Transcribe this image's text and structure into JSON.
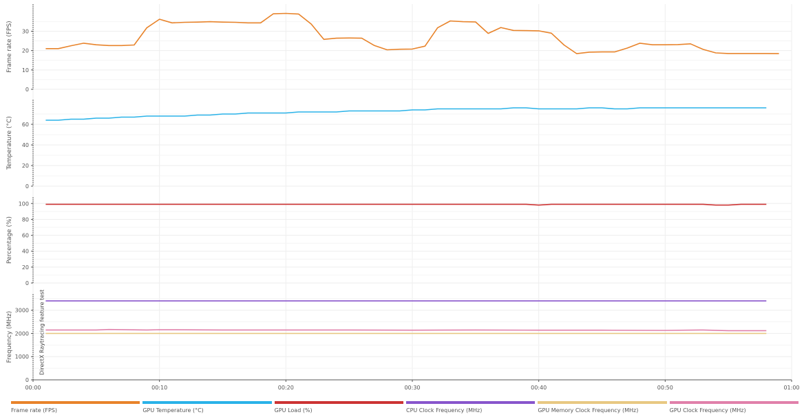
{
  "chart_data": {
    "type": "line",
    "x_axis": {
      "ticks": [
        "00:00",
        "00:10",
        "00:20",
        "00:30",
        "00:40",
        "00:50",
        "01:00"
      ],
      "range_seconds": [
        0,
        60
      ]
    },
    "marker": {
      "x": 1,
      "label": "DirectX Raytracing feature test"
    },
    "panels": [
      {
        "ylabel": "Frame rate (FPS)",
        "ylim": [
          0,
          44
        ],
        "yticks": [
          0,
          10,
          20,
          30
        ],
        "series": [
          {
            "name": "Frame rate (FPS)",
            "color": "#e8832a",
            "x": [
              1,
              2,
              3,
              4,
              5,
              6,
              7,
              8,
              9,
              10,
              11,
              12,
              13,
              14,
              15,
              16,
              17,
              18,
              19,
              20,
              21,
              22,
              23,
              24,
              25,
              26,
              27,
              28,
              29,
              30,
              31,
              32,
              33,
              34,
              35,
              36,
              37,
              38,
              39,
              40,
              41,
              42,
              43,
              44,
              45,
              46,
              47,
              48,
              49,
              50,
              51,
              52,
              53,
              54,
              55,
              56,
              57,
              58,
              59
            ],
            "values": [
              21,
              21,
              22.5,
              23.8,
              23,
              22.6,
              22.6,
              22.9,
              31.8,
              36.2,
              34.3,
              34.6,
              34.7,
              34.9,
              34.7,
              34.6,
              34.3,
              34.3,
              39,
              39.2,
              38.9,
              33.7,
              25.8,
              26.4,
              26.5,
              26.4,
              22.6,
              20.4,
              20.7,
              20.8,
              22.3,
              31.8,
              35.3,
              34.9,
              34.8,
              28.9,
              31.9,
              30.4,
              30.3,
              30.2,
              29,
              22.9,
              18.4,
              19.2,
              19.3,
              19.3,
              21.3,
              23.8,
              23,
              23,
              23.1,
              23.5,
              20.6,
              18.8,
              18.5,
              18.5,
              18.5,
              18.5,
              18.4
            ]
          }
        ]
      },
      {
        "ylabel": "Temperature (°C)",
        "ylim": [
          0,
          84
        ],
        "yticks": [
          0,
          20,
          40,
          60
        ],
        "series": [
          {
            "name": "GPU Temperature (°C)",
            "color": "#29b2e8",
            "x": [
              1,
              2,
              3,
              4,
              5,
              6,
              7,
              8,
              9,
              10,
              11,
              12,
              13,
              14,
              15,
              16,
              17,
              18,
              19,
              20,
              21,
              22,
              23,
              24,
              25,
              26,
              27,
              28,
              29,
              30,
              31,
              32,
              33,
              34,
              35,
              36,
              37,
              38,
              39,
              40,
              41,
              42,
              43,
              44,
              45,
              46,
              47,
              48,
              49,
              50,
              51,
              52,
              53,
              54,
              55,
              56,
              57,
              58
            ],
            "values": [
              64,
              64,
              65,
              65,
              66,
              66,
              67,
              67,
              68,
              68,
              68,
              68,
              69,
              69,
              70,
              70,
              71,
              71,
              71,
              71,
              72,
              72,
              72,
              72,
              73,
              73,
              73,
              73,
              73,
              74,
              74,
              75,
              75,
              75,
              75,
              75,
              75,
              76,
              76,
              75,
              75,
              75,
              75,
              76,
              76,
              75,
              75,
              76,
              76,
              76,
              76,
              76,
              76,
              76,
              76,
              76,
              76,
              76
            ]
          }
        ]
      },
      {
        "ylabel": "Percentage (%)",
        "ylim": [
          0,
          108
        ],
        "yticks": [
          0,
          20,
          40,
          60,
          80,
          100
        ],
        "series": [
          {
            "name": "GPU Load (%)",
            "color": "#cc3333",
            "x": [
              1,
              39,
              40,
              41,
              53,
              54,
              55,
              56,
              58
            ],
            "values": [
              99,
              99,
              98,
              99,
              99,
              98,
              98,
              99,
              99
            ]
          }
        ]
      },
      {
        "ylabel": "Frequency (MHz)",
        "ylim": [
          0,
          3700
        ],
        "yticks": [
          0,
          1000,
          2000,
          3000
        ],
        "series": [
          {
            "name": "CPU Clock Frequency (MHz)",
            "color": "#8855cc",
            "x": [
              1,
              58
            ],
            "values": [
              3400,
              3400
            ]
          },
          {
            "name": "GPU Clock Frequency (MHz)",
            "color": "#e080aa",
            "x": [
              1,
              5,
              6,
              9,
              10,
              15,
              20,
              25,
              30,
              35,
              40,
              45,
              50,
              53,
              55,
              58
            ],
            "values": [
              2150,
              2150,
              2170,
              2150,
              2160,
              2150,
              2150,
              2150,
              2140,
              2150,
              2140,
              2140,
              2130,
              2150,
              2120,
              2120
            ]
          },
          {
            "name": "GPU Memory Clock Frequency (MHz)",
            "color": "#e8c882",
            "x": [
              1,
              58
            ],
            "values": [
              2000,
              2000
            ]
          }
        ]
      }
    ],
    "legend": {
      "position": "bottom",
      "items": [
        {
          "label": "Frame rate (FPS)",
          "color": "#e8832a"
        },
        {
          "label": "GPU Temperature (°C)",
          "color": "#29b2e8"
        },
        {
          "label": "GPU Load (%)",
          "color": "#cc3333"
        },
        {
          "label": "CPU Clock Frequency (MHz)",
          "color": "#8855cc"
        },
        {
          "label": "GPU Memory Clock Frequency (MHz)",
          "color": "#e8c882"
        },
        {
          "label": "GPU Clock Frequency (MHz)",
          "color": "#e080aa"
        }
      ]
    },
    "colors": {
      "grid": "#eeeeee",
      "axis": "#555555",
      "text": "#555555"
    }
  }
}
